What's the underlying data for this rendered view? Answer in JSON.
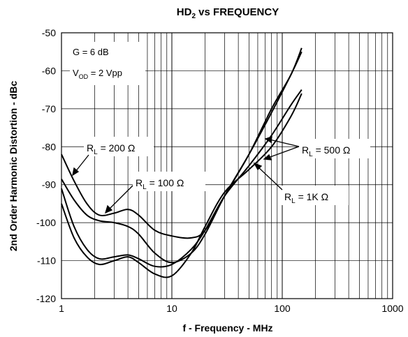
{
  "chart_data": {
    "type": "line",
    "title": "HD",
    "title_sub": "2",
    "title_rest": " vs FREQUENCY",
    "xlabel": "f - Frequency - MHz",
    "ylabel": "2nd Order Harmonic Distortion - dBc",
    "x_scale": "log",
    "xlim": [
      1,
      1000
    ],
    "ylim": [
      -120,
      -50
    ],
    "x_ticks": [
      1,
      10,
      100,
      1000
    ],
    "x_tick_labels": [
      "1",
      "10",
      "100",
      "1000"
    ],
    "y_ticks": [
      -120,
      -110,
      -100,
      -90,
      -80,
      -70,
      -60,
      -50
    ],
    "y_tick_labels": [
      "-120",
      "-110",
      "-100",
      "-90",
      "-80",
      "-70",
      "-60",
      "-50"
    ],
    "grid": true,
    "conditions": [
      {
        "prefix": "G = 6 dB",
        "sub": "",
        "suffix": ""
      },
      {
        "prefix": "V",
        "sub": "OD",
        "suffix": " = 2 Vpp"
      }
    ],
    "series": [
      {
        "name": "RL = 200 Ω",
        "x": [
          1,
          1.3,
          1.7,
          2.2,
          3,
          4,
          5,
          7,
          10,
          15,
          20,
          30,
          50,
          80,
          120,
          150
        ],
        "y": [
          -82,
          -89,
          -95,
          -98,
          -97.5,
          -96.5,
          -98,
          -102,
          -103.5,
          -104,
          -102,
          -93,
          -82,
          -70,
          -61,
          -54
        ]
      },
      {
        "name": "RL = 100 Ω",
        "x": [
          1,
          1.3,
          1.7,
          2.2,
          3,
          4,
          5,
          7,
          10,
          15,
          20,
          30,
          50,
          80,
          120,
          150
        ],
        "y": [
          -88.5,
          -94,
          -98,
          -99.5,
          -100,
          -101,
          -103,
          -108,
          -110.5,
          -108,
          -103,
          -93,
          -82,
          -71,
          -61,
          -55
        ]
      },
      {
        "name": "RL = 500 Ω",
        "x": [
          1,
          1.3,
          1.7,
          2.2,
          3,
          4,
          5,
          7,
          10,
          15,
          20,
          30,
          50,
          80,
          120,
          150
        ],
        "y": [
          -91,
          -101,
          -107,
          -109.5,
          -109,
          -108.5,
          -109.5,
          -111.5,
          -111,
          -107,
          -102,
          -93,
          -85,
          -77,
          -69,
          -65
        ]
      },
      {
        "name": "RL = 1K Ω",
        "x": [
          1,
          1.3,
          1.7,
          2.2,
          3,
          4,
          5,
          7,
          10,
          15,
          20,
          30,
          50,
          80,
          120,
          150
        ],
        "y": [
          -95,
          -104,
          -109,
          -111,
          -110,
          -109,
          -110.5,
          -113.5,
          -114,
          -108,
          -101,
          -92,
          -86,
          -80,
          -72,
          -66
        ]
      }
    ],
    "annotations": [
      {
        "id": "ann200",
        "main": "R",
        "sub": "L",
        "rest": " = 200 Ω"
      },
      {
        "id": "ann100",
        "main": "R",
        "sub": "L",
        "rest": " = 100 Ω"
      },
      {
        "id": "ann500",
        "main": "R",
        "sub": "L",
        "rest": " = 500 Ω"
      },
      {
        "id": "ann1k",
        "main": "R",
        "sub": "L",
        "rest": " = 1K Ω"
      }
    ]
  }
}
